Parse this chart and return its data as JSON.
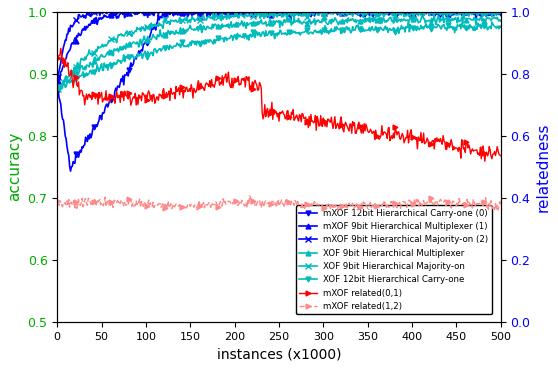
{
  "title": "",
  "xlabel": "instances (x1000)",
  "ylabel_left": "accuracy",
  "ylabel_right": "relatedness",
  "xlim": [
    0,
    500
  ],
  "ylim_left": [
    0.5,
    1.0
  ],
  "ylim_right": [
    0.0,
    1.0
  ],
  "xticks": [
    0,
    50,
    100,
    150,
    200,
    250,
    300,
    350,
    400,
    450,
    500
  ],
  "yticks_left": [
    0.5,
    0.6,
    0.7,
    0.8,
    0.9,
    1.0
  ],
  "yticks_right": [
    0.0,
    0.2,
    0.4,
    0.6,
    0.8,
    1.0
  ],
  "legend_entries": [
    "mXOF 12bit Hierarchical Carry-one (0)",
    "mXOF 9bit Hierarchical Multiplexer (1)",
    "mXOF 9bit Hierarchical Majority-on (2)",
    "XOF 9bit Hierarchical Multiplexer",
    "XOF 9bit Hierarchical Majority-on",
    "XOF 12bit Hierarchical Carry-one",
    "mXOF related(0,1)",
    "mXOF related(1,2)"
  ],
  "blue_color": "#0000FF",
  "cyan_color": "#00BBBB",
  "red_color": "#FF0000",
  "red_dashed_color": "#FF8888",
  "ylabel_left_color": "#00AA00",
  "ylabel_right_color": "#0000FF",
  "n_points": 500
}
